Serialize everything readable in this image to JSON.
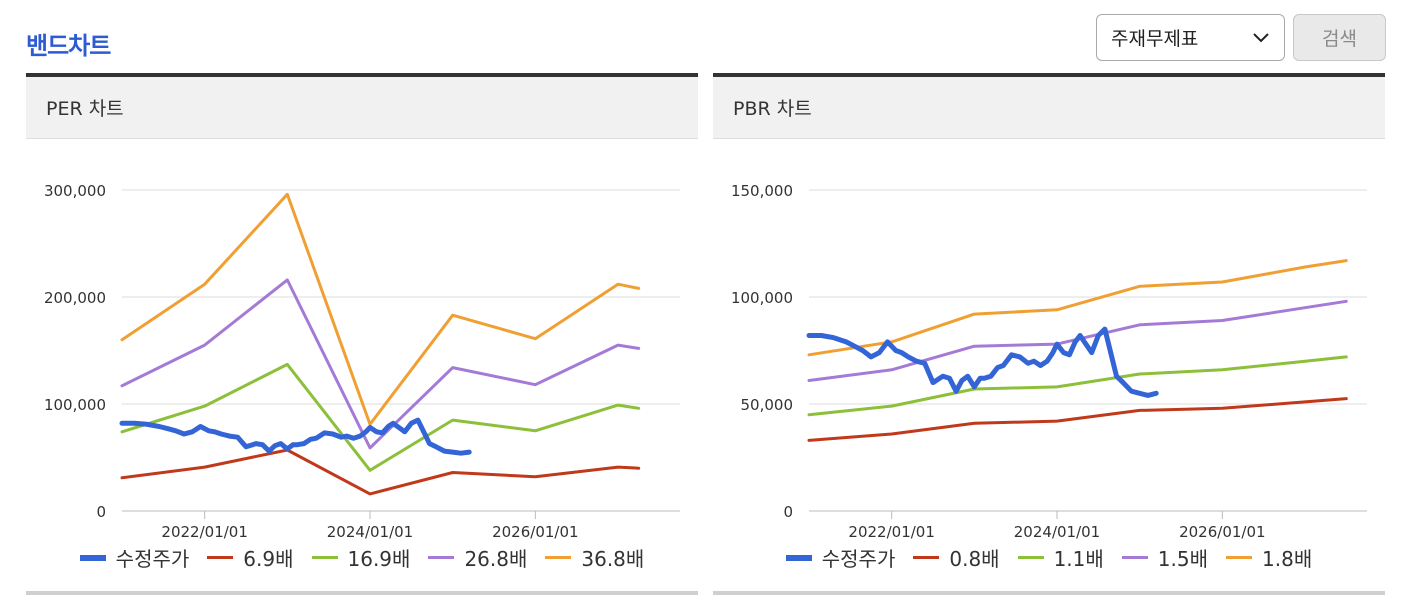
{
  "page": {
    "title": "밴드차트"
  },
  "filter": {
    "selected": "주재무제표"
  },
  "search": {
    "label": "검색"
  },
  "colors": {
    "price": "#3465d6",
    "band1": "#c0391b",
    "band2": "#8cbf3a",
    "band3": "#a47ad6",
    "band4": "#f0a033"
  },
  "chart_data": [
    {
      "type": "line",
      "title": "PER 차트",
      "x_range": [
        2021.0,
        2027.75
      ],
      "ylim": [
        0,
        300000
      ],
      "y_ticks": [
        0,
        100000,
        200000,
        300000
      ],
      "y_tick_labels": [
        "0",
        "100,000",
        "200,000",
        "300,000"
      ],
      "x_ticks": [
        2022,
        2024,
        2026
      ],
      "x_tick_labels": [
        "2022/01/01",
        "2024/01/01",
        "2026/01/01"
      ],
      "grid": true,
      "legend_position": "bottom",
      "series": [
        {
          "name": "수정주가",
          "color_key": "price",
          "thick": true,
          "x": [
            2021.0,
            2021.15,
            2021.3,
            2021.45,
            2021.55,
            2021.65,
            2021.75,
            2021.8,
            2021.85,
            2021.95,
            2022.05,
            2022.12,
            2022.2,
            2022.3,
            2022.4,
            2022.5,
            2022.58,
            2022.62,
            2022.7,
            2022.78,
            2022.85,
            2022.92,
            2023.0,
            2023.07,
            2023.12,
            2023.2,
            2023.28,
            2023.35,
            2023.45,
            2023.55,
            2023.65,
            2023.72,
            2023.8,
            2023.88,
            2023.95,
            2024.0,
            2024.08,
            2024.15,
            2024.22,
            2024.28,
            2024.35,
            2024.42,
            2024.5,
            2024.58,
            2024.65,
            2024.72,
            2024.8,
            2024.9,
            2025.0,
            2025.1,
            2025.2
          ],
          "values": [
            82000,
            82000,
            81000,
            79000,
            77000,
            75000,
            72000,
            73000,
            74000,
            79000,
            75000,
            74000,
            72000,
            70000,
            69000,
            60000,
            62000,
            63000,
            62000,
            56000,
            61000,
            63000,
            58000,
            62000,
            62000,
            63000,
            67000,
            68000,
            73000,
            72000,
            69000,
            70000,
            68000,
            70000,
            74000,
            78000,
            74000,
            73000,
            79000,
            82000,
            78000,
            74000,
            82000,
            85000,
            74000,
            63000,
            60000,
            56000,
            55000,
            54000,
            55000
          ]
        },
        {
          "name": "6.9배",
          "color_key": "band1",
          "thick": false,
          "x": [
            2021.0,
            2022.0,
            2023.0,
            2024.0,
            2025.0,
            2026.0,
            2027.0,
            2027.25
          ],
          "values": [
            31000,
            41000,
            57000,
            16000,
            36000,
            32000,
            41000,
            40000
          ]
        },
        {
          "name": "16.9배",
          "color_key": "band2",
          "thick": false,
          "x": [
            2021.0,
            2022.0,
            2023.0,
            2024.0,
            2025.0,
            2026.0,
            2027.0,
            2027.25
          ],
          "values": [
            74000,
            98000,
            137000,
            38000,
            85000,
            75000,
            99000,
            96000
          ]
        },
        {
          "name": "26.8배",
          "color_key": "band3",
          "thick": false,
          "x": [
            2021.0,
            2022.0,
            2023.0,
            2024.0,
            2025.0,
            2026.0,
            2027.0,
            2027.25
          ],
          "values": [
            117000,
            155000,
            216000,
            59000,
            134000,
            118000,
            155000,
            152000
          ]
        },
        {
          "name": "36.8배",
          "color_key": "band4",
          "thick": false,
          "x": [
            2021.0,
            2022.0,
            2023.0,
            2024.0,
            2025.0,
            2026.0,
            2027.0,
            2027.25
          ],
          "values": [
            160000,
            212000,
            296000,
            81000,
            183000,
            161000,
            212000,
            208000
          ]
        }
      ]
    },
    {
      "type": "line",
      "title": "PBR 차트",
      "x_range": [
        2021.0,
        2027.75
      ],
      "ylim": [
        0,
        150000
      ],
      "y_ticks": [
        0,
        50000,
        100000,
        150000
      ],
      "y_tick_labels": [
        "0",
        "50,000",
        "100,000",
        "150,000"
      ],
      "x_ticks": [
        2022,
        2024,
        2026
      ],
      "x_tick_labels": [
        "2022/01/01",
        "2024/01/01",
        "2026/01/01"
      ],
      "grid": true,
      "legend_position": "bottom",
      "series": [
        {
          "name": "수정주가",
          "color_key": "price",
          "thick": true,
          "x": [
            2021.0,
            2021.15,
            2021.3,
            2021.45,
            2021.55,
            2021.65,
            2021.75,
            2021.8,
            2021.85,
            2021.95,
            2022.05,
            2022.12,
            2022.2,
            2022.3,
            2022.4,
            2022.5,
            2022.58,
            2022.62,
            2022.7,
            2022.78,
            2022.85,
            2022.92,
            2023.0,
            2023.07,
            2023.12,
            2023.2,
            2023.28,
            2023.35,
            2023.45,
            2023.55,
            2023.65,
            2023.72,
            2023.8,
            2023.88,
            2023.95,
            2024.0,
            2024.08,
            2024.15,
            2024.22,
            2024.28,
            2024.35,
            2024.42,
            2024.5,
            2024.58,
            2024.65,
            2024.72,
            2024.8,
            2024.9,
            2025.0,
            2025.1,
            2025.2
          ],
          "values": [
            82000,
            82000,
            81000,
            79000,
            77000,
            75000,
            72000,
            73000,
            74000,
            79000,
            75000,
            74000,
            72000,
            70000,
            69000,
            60000,
            62000,
            63000,
            62000,
            56000,
            61000,
            63000,
            58000,
            62000,
            62000,
            63000,
            67000,
            68000,
            73000,
            72000,
            69000,
            70000,
            68000,
            70000,
            74000,
            78000,
            74000,
            73000,
            79000,
            82000,
            78000,
            74000,
            82000,
            85000,
            74000,
            63000,
            60000,
            56000,
            55000,
            54000,
            55000
          ]
        },
        {
          "name": "0.8배",
          "color_key": "band1",
          "thick": false,
          "x": [
            2021.0,
            2022.0,
            2023.0,
            2024.0,
            2025.0,
            2026.0,
            2027.0,
            2027.5
          ],
          "values": [
            33000,
            36000,
            41000,
            42000,
            47000,
            48000,
            51000,
            52500
          ]
        },
        {
          "name": "1.1배",
          "color_key": "band2",
          "thick": false,
          "x": [
            2021.0,
            2022.0,
            2023.0,
            2024.0,
            2025.0,
            2026.0,
            2027.0,
            2027.5
          ],
          "values": [
            45000,
            49000,
            57000,
            58000,
            64000,
            66000,
            70000,
            72000
          ]
        },
        {
          "name": "1.5배",
          "color_key": "band3",
          "thick": false,
          "x": [
            2021.0,
            2022.0,
            2023.0,
            2024.0,
            2025.0,
            2026.0,
            2027.0,
            2027.5
          ],
          "values": [
            61000,
            66000,
            77000,
            78000,
            87000,
            89000,
            95000,
            98000
          ]
        },
        {
          "name": "1.8배",
          "color_key": "band4",
          "thick": false,
          "x": [
            2021.0,
            2022.0,
            2023.0,
            2024.0,
            2025.0,
            2026.0,
            2027.0,
            2027.5
          ],
          "values": [
            73000,
            79000,
            92000,
            94000,
            105000,
            107000,
            114000,
            117000
          ]
        }
      ]
    }
  ]
}
